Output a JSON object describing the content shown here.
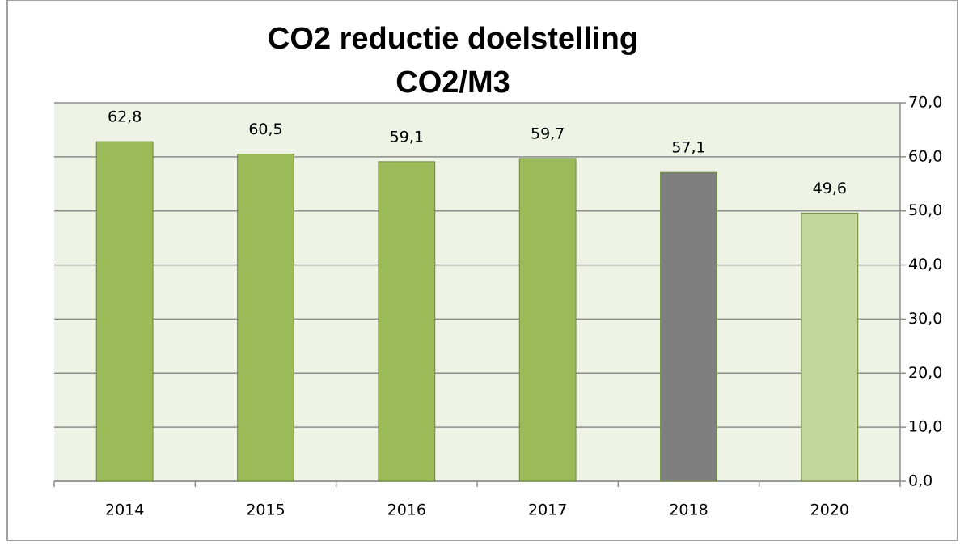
{
  "chart_data": {
    "type": "bar",
    "title": "CO2 reductie doelstelling",
    "subtitle": "CO2/M3",
    "categories": [
      "2014",
      "2015",
      "2016",
      "2017",
      "2018",
      "2020"
    ],
    "values": [
      62.8,
      60.5,
      59.1,
      59.7,
      57.1,
      49.6
    ],
    "value_labels": [
      "62,8",
      "60,5",
      "59,1",
      "59,7",
      "57,1",
      "49,6"
    ],
    "colors": [
      "#9bbb59",
      "#9bbb59",
      "#9bbb59",
      "#9bbb59",
      "#7f7f7f",
      "#c3d69b"
    ],
    "ylim": [
      0,
      70
    ],
    "yticks": [
      {
        "value": 0,
        "label": "0,0"
      },
      {
        "value": 10,
        "label": "10,0"
      },
      {
        "value": 20,
        "label": "20,0"
      },
      {
        "value": 30,
        "label": "30,0"
      },
      {
        "value": 40,
        "label": "40,0"
      },
      {
        "value": 50,
        "label": "50,0"
      },
      {
        "value": 60,
        "label": "60,0"
      },
      {
        "value": 70,
        "label": "70,0"
      }
    ],
    "y_axis_side": "right",
    "grid": true
  }
}
